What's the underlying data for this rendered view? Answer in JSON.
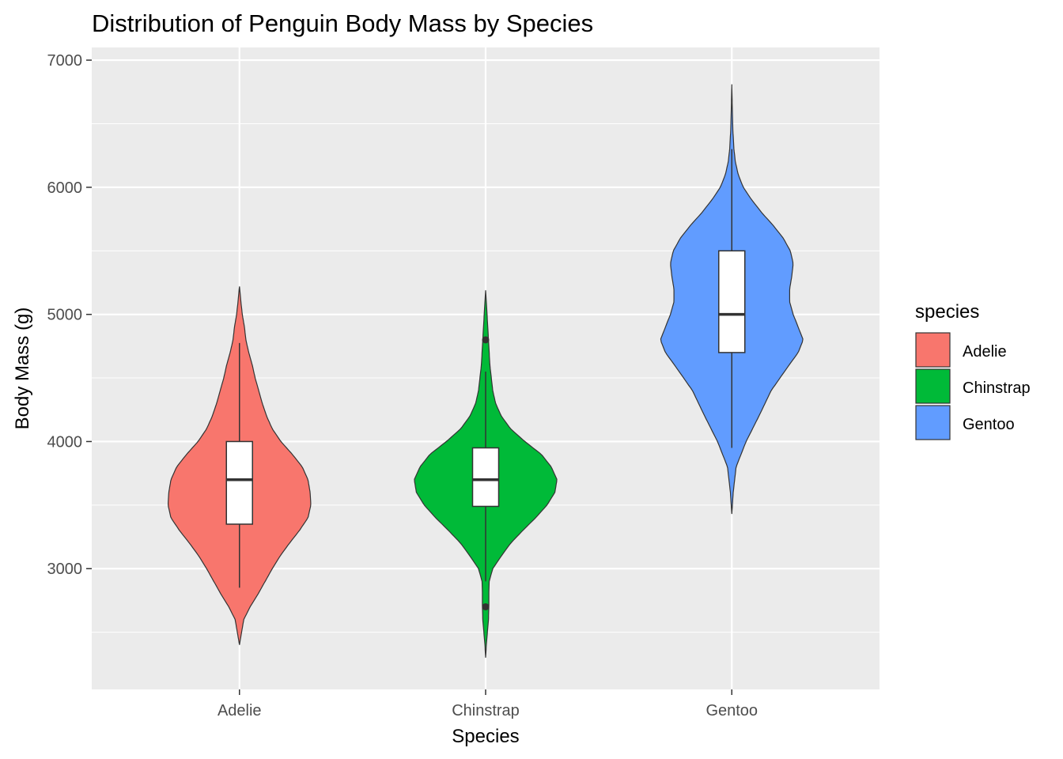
{
  "chart_data": {
    "type": "violin",
    "title": "Distribution of Penguin Body Mass by Species",
    "xlabel": "Species",
    "ylabel": "Body Mass (g)",
    "categories": [
      "Adelie",
      "Chinstrap",
      "Gentoo"
    ],
    "ylim": [
      2050,
      7100
    ],
    "y_ticks": [
      3000,
      4000,
      5000,
      6000,
      7000
    ],
    "grid": true,
    "legend": {
      "title": "species",
      "placement": "right"
    },
    "series": [
      {
        "name": "Adelie",
        "color": "#F8766D",
        "box": {
          "min": 2850,
          "q1": 3350,
          "median": 3700,
          "q3": 4000,
          "max": 4775
        },
        "outliers": [],
        "density_range": [
          2400,
          5220
        ],
        "density_profile": [
          [
            2400,
            0.0
          ],
          [
            2500,
            0.03
          ],
          [
            2600,
            0.06
          ],
          [
            2700,
            0.15
          ],
          [
            2800,
            0.26
          ],
          [
            2900,
            0.36
          ],
          [
            3000,
            0.46
          ],
          [
            3100,
            0.57
          ],
          [
            3200,
            0.7
          ],
          [
            3300,
            0.84
          ],
          [
            3400,
            0.96
          ],
          [
            3500,
            1.0
          ],
          [
            3600,
            0.99
          ],
          [
            3700,
            0.96
          ],
          [
            3800,
            0.88
          ],
          [
            3900,
            0.74
          ],
          [
            4000,
            0.58
          ],
          [
            4100,
            0.46
          ],
          [
            4200,
            0.38
          ],
          [
            4300,
            0.32
          ],
          [
            4400,
            0.27
          ],
          [
            4500,
            0.22
          ],
          [
            4600,
            0.18
          ],
          [
            4700,
            0.13
          ],
          [
            4800,
            0.09
          ],
          [
            4900,
            0.07
          ],
          [
            5000,
            0.04
          ],
          [
            5100,
            0.02
          ],
          [
            5220,
            0.0
          ]
        ]
      },
      {
        "name": "Chinstrap",
        "color": "#00BA38",
        "box": {
          "min": 2900,
          "q1": 3490,
          "median": 3700,
          "q3": 3950,
          "max": 4550
        },
        "outliers": [
          2700,
          4800
        ],
        "density_range": [
          2300,
          5190
        ],
        "density_profile": [
          [
            2300,
            0.0
          ],
          [
            2400,
            0.01
          ],
          [
            2500,
            0.025
          ],
          [
            2600,
            0.04
          ],
          [
            2700,
            0.045
          ],
          [
            2800,
            0.045
          ],
          [
            2900,
            0.05
          ],
          [
            3000,
            0.1
          ],
          [
            3100,
            0.22
          ],
          [
            3200,
            0.35
          ],
          [
            3300,
            0.52
          ],
          [
            3400,
            0.7
          ],
          [
            3500,
            0.86
          ],
          [
            3600,
            0.97
          ],
          [
            3700,
            1.0
          ],
          [
            3800,
            0.92
          ],
          [
            3900,
            0.78
          ],
          [
            4000,
            0.55
          ],
          [
            4100,
            0.35
          ],
          [
            4200,
            0.22
          ],
          [
            4300,
            0.14
          ],
          [
            4400,
            0.1
          ],
          [
            4500,
            0.08
          ],
          [
            4600,
            0.06
          ],
          [
            4700,
            0.05
          ],
          [
            4800,
            0.04
          ],
          [
            4900,
            0.03
          ],
          [
            5000,
            0.02
          ],
          [
            5100,
            0.01
          ],
          [
            5190,
            0.0
          ]
        ]
      },
      {
        "name": "Gentoo",
        "color": "#619CFF",
        "box": {
          "min": 3950,
          "q1": 4700,
          "median": 5000,
          "q3": 5500,
          "max": 6300
        },
        "outliers": [],
        "density_range": [
          3430,
          6810
        ],
        "density_profile": [
          [
            3430,
            0.0
          ],
          [
            3600,
            0.02
          ],
          [
            3800,
            0.06
          ],
          [
            4000,
            0.2
          ],
          [
            4200,
            0.38
          ],
          [
            4400,
            0.55
          ],
          [
            4600,
            0.8
          ],
          [
            4700,
            0.93
          ],
          [
            4800,
            1.0
          ],
          [
            4900,
            0.93
          ],
          [
            5000,
            0.86
          ],
          [
            5100,
            0.81
          ],
          [
            5200,
            0.81
          ],
          [
            5300,
            0.84
          ],
          [
            5400,
            0.86
          ],
          [
            5500,
            0.82
          ],
          [
            5600,
            0.72
          ],
          [
            5700,
            0.58
          ],
          [
            5800,
            0.42
          ],
          [
            5900,
            0.28
          ],
          [
            6000,
            0.16
          ],
          [
            6100,
            0.09
          ],
          [
            6200,
            0.05
          ],
          [
            6300,
            0.03
          ],
          [
            6450,
            0.015
          ],
          [
            6600,
            0.008
          ],
          [
            6810,
            0.0
          ]
        ]
      }
    ]
  }
}
